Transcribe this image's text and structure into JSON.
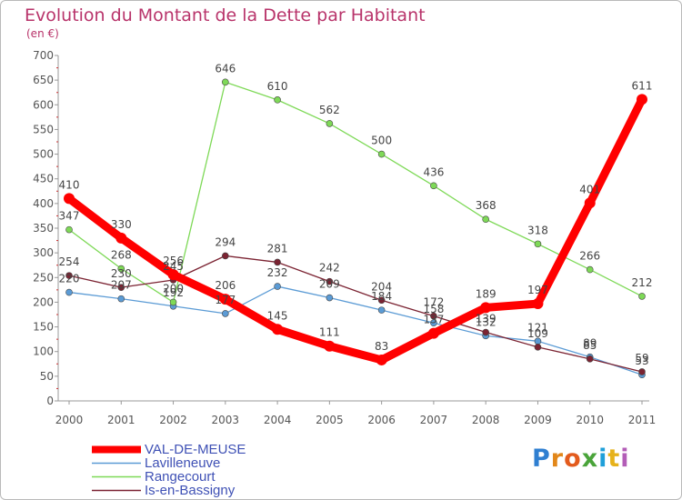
{
  "chart_data": {
    "type": "line",
    "title": "Evolution du Montant de la Dette par Habitant",
    "subtitle": "(en €)",
    "x": [
      "2000",
      "2001",
      "2002",
      "2003",
      "2004",
      "2005",
      "2006",
      "2007",
      "2008",
      "2009",
      "2010",
      "2011"
    ],
    "ylim": [
      0,
      700
    ],
    "yticks": [
      0,
      50,
      100,
      150,
      200,
      250,
      300,
      350,
      400,
      450,
      500,
      550,
      600,
      650,
      700
    ],
    "grid": false,
    "legend": "bottom-left",
    "series": [
      {
        "name": "VAL-DE-MEUSE",
        "color": "#ff0000",
        "highlight": true,
        "values": [
          410,
          330,
          256,
          206,
          145,
          111,
          83,
          137,
          189,
          197,
          401,
          611
        ],
        "labels": [
          "410",
          "330",
          "256",
          "206",
          "145",
          "111",
          "83",
          "137",
          "189",
          "197",
          "401",
          "611"
        ]
      },
      {
        "name": "Lavilleneuve",
        "color": "#5b9bd5",
        "highlight": false,
        "values": [
          220,
          207,
          192,
          177,
          232,
          209,
          184,
          158,
          132,
          121,
          89,
          53
        ],
        "labels": [
          "220",
          "207",
          "192",
          "177",
          "232",
          "209",
          "184",
          "158",
          "132",
          "121",
          "89",
          "53"
        ]
      },
      {
        "name": "Rangecourt",
        "color": "#7ed957",
        "highlight": false,
        "values": [
          347,
          268,
          200,
          646,
          610,
          562,
          500,
          436,
          368,
          318,
          266,
          212
        ],
        "labels": [
          "347",
          "268",
          "200",
          "646",
          "610",
          "562",
          "500",
          "436",
          "368",
          "318",
          "266",
          "212"
        ]
      },
      {
        "name": "Is-en-Bassigny",
        "color": "#7b2332",
        "highlight": false,
        "values": [
          254,
          230,
          245,
          294,
          281,
          242,
          204,
          172,
          139,
          109,
          85,
          59
        ],
        "labels": [
          "254",
          "230",
          "245",
          "294",
          "281",
          "242",
          "204",
          "172",
          "139",
          "109",
          "85",
          "59"
        ]
      }
    ]
  },
  "brand": {
    "logo_text": "Proxiti",
    "letters": [
      "P",
      "r",
      "o",
      "x",
      "i",
      "t",
      "i"
    ]
  }
}
